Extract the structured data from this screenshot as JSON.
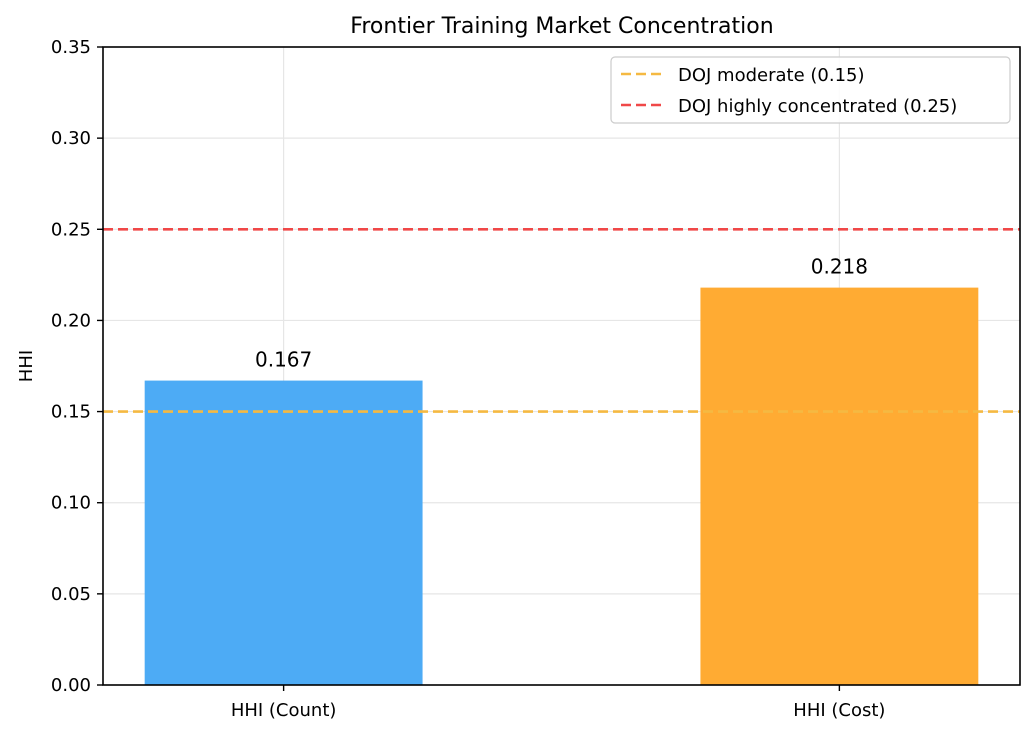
{
  "chart_data": {
    "type": "bar",
    "title": "Frontier Training Market Concentration",
    "xlabel": "",
    "ylabel": "HHI",
    "categories": [
      "HHI (Count)",
      "HHI (Cost)"
    ],
    "values": [
      0.167,
      0.218
    ],
    "value_labels": [
      "0.167",
      "0.218"
    ],
    "bar_colors": [
      "#4DABF5",
      "#FFAB33"
    ],
    "ylim": [
      0,
      0.35
    ],
    "yticks": [
      0.0,
      0.05,
      0.1,
      0.15,
      0.2,
      0.25,
      0.3,
      0.35
    ],
    "ytick_labels": [
      "0.00",
      "0.05",
      "0.10",
      "0.15",
      "0.20",
      "0.25",
      "0.30",
      "0.35"
    ],
    "grid": true,
    "legend_position": "top-right",
    "reference_lines": [
      {
        "name": "DOJ moderate (0.15)",
        "value": 0.15,
        "color": "#F5B942",
        "style": "dashed"
      },
      {
        "name": "DOJ highly concentrated (0.25)",
        "value": 0.25,
        "color": "#F04848",
        "style": "dashed"
      }
    ]
  }
}
